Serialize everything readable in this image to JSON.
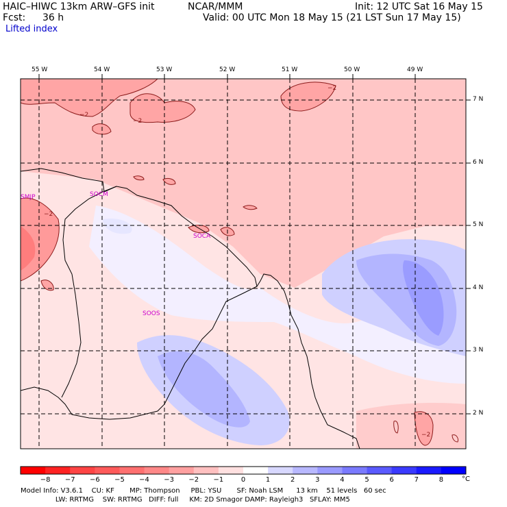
{
  "header": {
    "model": "HAIC–HIWC 13km ARW–GFS init",
    "org": "NCAR/MMM",
    "init": "Init: 12 UTC Sat 16 May 15",
    "fcst_label": "Fcst:",
    "fcst_value": "36 h",
    "valid": "Valid: 00 UTC Mon 18 May 15 (21 LST Sun 17 May 15)",
    "field": "Lifted index"
  },
  "lon_labels": [
    "55 W",
    "54 W",
    "53 W",
    "52 W",
    "51 W",
    "50 W",
    "49 W"
  ],
  "lat_labels": [
    "7 N",
    "6 N",
    "5 N",
    "4 N",
    "3 N",
    "2 N"
  ],
  "stations": [
    "SMJP",
    "SOCM",
    "SOCA",
    "SOOS"
  ],
  "contour_labels": [
    "−2",
    "−2",
    "−2",
    "−2",
    "−2"
  ],
  "colorbar": {
    "ticks": [
      "−8",
      "−7",
      "−6",
      "−5",
      "−4",
      "−3",
      "−2",
      "−1",
      "0",
      "1",
      "2",
      "3",
      "4",
      "5",
      "6",
      "7",
      "8"
    ],
    "unit": "°C",
    "colors": [
      "#ff0000",
      "#ff2222",
      "#ff4444",
      "#ff5a5a",
      "#ff7070",
      "#ff8888",
      "#ffa0a0",
      "#ffc0c0",
      "#ffe0e0",
      "#ffffff",
      "#d8d8ff",
      "#b8b8ff",
      "#9a9aff",
      "#7a7aff",
      "#5a5aff",
      "#3a3aff",
      "#1a1aff",
      "#0000ff"
    ]
  },
  "footer": {
    "line1": "Model Info: V3.6.1    CU: KF       MP: Thompson     PBL: YSU       SF: Noah LSM      13 km    51 levels   60 sec",
    "line2": "                LW: RRTMG    SW: RRTMG   DIFF: full     KM: 2D Smagor DAMP: Rayleigh3   SFLAY: MM5"
  }
}
